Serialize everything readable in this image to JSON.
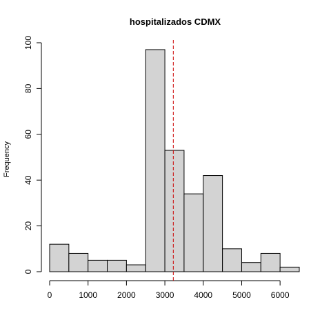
{
  "chart_data": {
    "type": "bar",
    "subtype": "histogram",
    "title": "hospitalizados CDMX",
    "xlabel": "",
    "ylabel": "Frequency",
    "bin_edges": [
      0,
      500,
      1000,
      1500,
      2000,
      2500,
      3000,
      3500,
      4000,
      4500,
      5000,
      5500,
      6000,
      6500
    ],
    "values": [
      12,
      8,
      5,
      5,
      3,
      97,
      53,
      34,
      42,
      10,
      4,
      8,
      2
    ],
    "xticks": [
      0,
      1000,
      2000,
      3000,
      4000,
      5000,
      6000
    ],
    "yticks": [
      0,
      20,
      40,
      60,
      80,
      100
    ],
    "xlim": [
      0,
      6500
    ],
    "ylim": [
      0,
      100
    ],
    "grid": false,
    "legend": "none",
    "reference_line": {
      "x": 3220,
      "style": "dashed"
    },
    "colors": {
      "bar_fill": "#d3d3d3",
      "bar_stroke": "#000000",
      "reference_line": "#cc0000"
    }
  }
}
